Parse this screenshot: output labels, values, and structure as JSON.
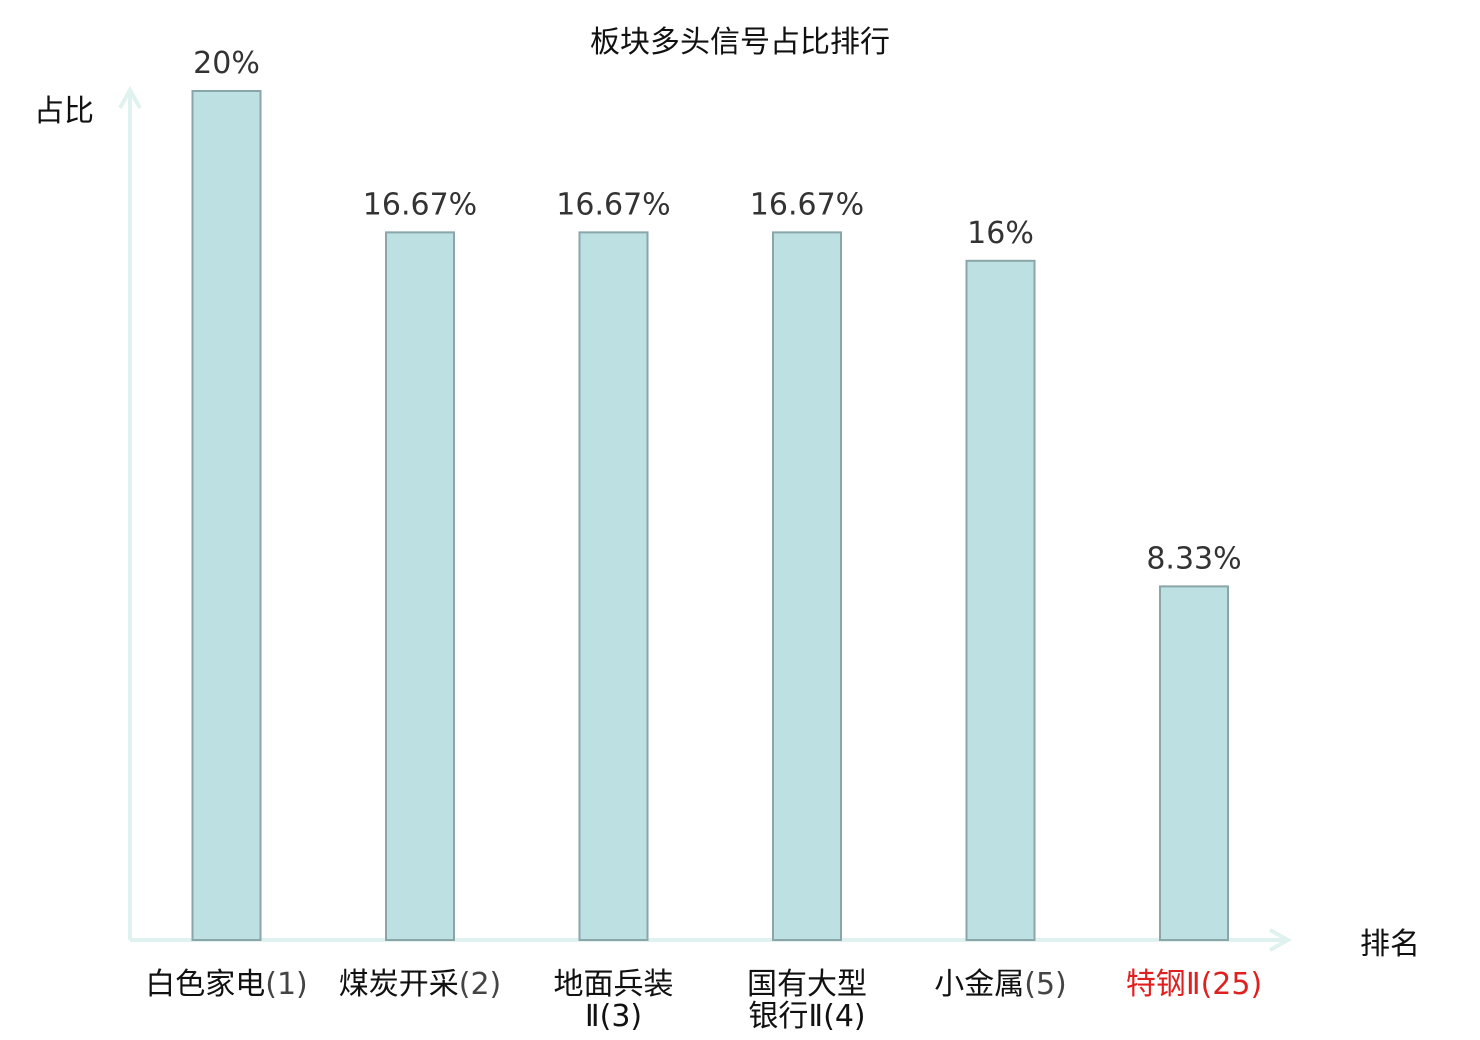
{
  "chart_data": {
    "type": "bar",
    "title": "板块多头信号占比排行",
    "xlabel": "排名",
    "ylabel": "占比",
    "categories": [
      {
        "lines": [
          "白色家电",
          "(1)"
        ],
        "inline": true,
        "highlight": false
      },
      {
        "lines": [
          "煤炭开采",
          "(2)"
        ],
        "inline": true,
        "highlight": false
      },
      {
        "lines": [
          "地面兵装",
          "Ⅱ(3)"
        ],
        "inline": false,
        "highlight": false
      },
      {
        "lines": [
          "国有大型",
          "银行Ⅱ(4)"
        ],
        "inline": false,
        "highlight": false
      },
      {
        "lines": [
          "小金属",
          "(5)"
        ],
        "inline": true,
        "highlight": false
      },
      {
        "lines": [
          "特钢",
          "Ⅱ(25)"
        ],
        "inline": true,
        "highlight": true
      }
    ],
    "values": [
      20,
      16.67,
      16.67,
      16.67,
      16,
      8.33
    ],
    "value_labels": [
      "20%",
      "16.67%",
      "16.67%",
      "16.67%",
      "16%",
      "8.33%"
    ],
    "ylim": [
      0,
      20
    ],
    "grid": false,
    "colors": {
      "bar_fill": "#bde0e3",
      "bar_stroke": "#8aa6a8",
      "axis": "#e0f2ef",
      "highlight": "#e02020"
    }
  }
}
